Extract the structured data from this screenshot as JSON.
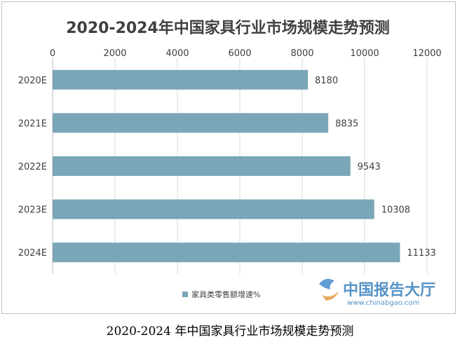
{
  "chart_data": {
    "type": "bar",
    "orientation": "horizontal",
    "title": "2020-2024年中国家具行业市场规模走势预测",
    "categories": [
      "2020E",
      "2021E",
      "2022E",
      "2023E",
      "2024E"
    ],
    "series": [
      {
        "name": "家具类零售额增速%",
        "values": [
          8180,
          8835,
          9543,
          10308,
          11133
        ]
      }
    ],
    "xlim": [
      0,
      12000
    ],
    "x_ticks": [
      "0",
      "2000",
      "4000",
      "6000",
      "8000",
      "10000",
      "12000"
    ],
    "x_axis_position": "top",
    "grid": true,
    "legend_position": "bottom-left",
    "bar_color": "#7aa6b8"
  },
  "watermark": {
    "text": "中国报告大厅",
    "url": "www.chinabgao.com"
  },
  "caption": "2020-2024 年中国家具行业市场规模走势预测"
}
